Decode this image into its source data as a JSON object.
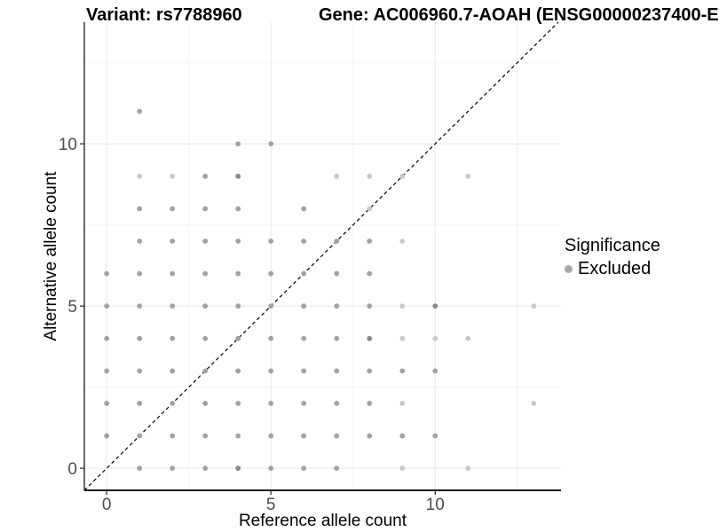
{
  "titles": {
    "variant": "Variant: rs7788960",
    "gene": "Gene: AC006960.7-AOAH (ENSG00000237400-E"
  },
  "axes": {
    "x_label": "Reference allele count",
    "y_label": "Alternative allele count"
  },
  "legend": {
    "title": "Significance",
    "items": [
      {
        "label": "Excluded",
        "color": "#a9a9a9"
      }
    ]
  },
  "chart_data": {
    "type": "scatter",
    "xlabel": "Reference allele count",
    "ylabel": "Alternative allele count",
    "xlim": [
      -0.68,
      13.83
    ],
    "ylim": [
      -0.68,
      13.75
    ],
    "x_ticks": [
      0,
      5,
      10
    ],
    "y_ticks": [
      0,
      5,
      10
    ],
    "x_minor_ticks": [
      2.5,
      7.5,
      12.5
    ],
    "y_minor_ticks": [
      2.5,
      7.5,
      12.5
    ],
    "grid": true,
    "legend_position": "right",
    "identity_line": {
      "slope": 1,
      "intercept": 0,
      "style": "dashed",
      "color": "#000000"
    },
    "point_radius": 2.9,
    "shade_colors": {
      "l": "#c9c9c9",
      "m": "#a2a2a2",
      "d": "#8a8a8a"
    },
    "series": [
      {
        "name": "Excluded",
        "points": [
          [
            1,
            0,
            "m"
          ],
          [
            2,
            0,
            "m"
          ],
          [
            3,
            0,
            "m"
          ],
          [
            4,
            0,
            "d"
          ],
          [
            5,
            0,
            "m"
          ],
          [
            6,
            0,
            "m"
          ],
          [
            7,
            0,
            "m"
          ],
          [
            9,
            0,
            "l"
          ],
          [
            11,
            0,
            "l"
          ],
          [
            0,
            1,
            "m"
          ],
          [
            1,
            1,
            "m"
          ],
          [
            2,
            1,
            "m"
          ],
          [
            3,
            1,
            "m"
          ],
          [
            4,
            1,
            "m"
          ],
          [
            5,
            1,
            "m"
          ],
          [
            6,
            1,
            "m"
          ],
          [
            7,
            1,
            "m"
          ],
          [
            8,
            1,
            "m"
          ],
          [
            9,
            1,
            "m"
          ],
          [
            10,
            1,
            "m"
          ],
          [
            0,
            2,
            "m"
          ],
          [
            1,
            2,
            "m"
          ],
          [
            2,
            2,
            "m"
          ],
          [
            3,
            2,
            "m"
          ],
          [
            4,
            2,
            "m"
          ],
          [
            5,
            2,
            "m"
          ],
          [
            6,
            2,
            "m"
          ],
          [
            7,
            2,
            "m"
          ],
          [
            8,
            2,
            "m"
          ],
          [
            9,
            2,
            "l"
          ],
          [
            13,
            2,
            "l"
          ],
          [
            0,
            3,
            "m"
          ],
          [
            1,
            3,
            "m"
          ],
          [
            2,
            3,
            "m"
          ],
          [
            3,
            3,
            "m"
          ],
          [
            4,
            3,
            "m"
          ],
          [
            5,
            3,
            "m"
          ],
          [
            6,
            3,
            "m"
          ],
          [
            7,
            3,
            "m"
          ],
          [
            8,
            3,
            "m"
          ],
          [
            9,
            3,
            "m"
          ],
          [
            10,
            3,
            "m"
          ],
          [
            0,
            4,
            "m"
          ],
          [
            1,
            4,
            "m"
          ],
          [
            2,
            4,
            "m"
          ],
          [
            3,
            4,
            "m"
          ],
          [
            4,
            4,
            "m"
          ],
          [
            5,
            4,
            "m"
          ],
          [
            6,
            4,
            "m"
          ],
          [
            7,
            4,
            "m"
          ],
          [
            8,
            4,
            "d"
          ],
          [
            9,
            4,
            "l"
          ],
          [
            10,
            4,
            "l"
          ],
          [
            11,
            4,
            "l"
          ],
          [
            0,
            5,
            "m"
          ],
          [
            1,
            5,
            "m"
          ],
          [
            2,
            5,
            "m"
          ],
          [
            3,
            5,
            "m"
          ],
          [
            4,
            5,
            "m"
          ],
          [
            5,
            5,
            "m"
          ],
          [
            6,
            5,
            "m"
          ],
          [
            7,
            5,
            "m"
          ],
          [
            8,
            5,
            "m"
          ],
          [
            9,
            5,
            "l"
          ],
          [
            10,
            5,
            "d"
          ],
          [
            13,
            5,
            "l"
          ],
          [
            0,
            6,
            "m"
          ],
          [
            1,
            6,
            "m"
          ],
          [
            2,
            6,
            "m"
          ],
          [
            3,
            6,
            "m"
          ],
          [
            4,
            6,
            "m"
          ],
          [
            5,
            6,
            "m"
          ],
          [
            6,
            6,
            "m"
          ],
          [
            7,
            6,
            "m"
          ],
          [
            8,
            6,
            "m"
          ],
          [
            1,
            7,
            "m"
          ],
          [
            2,
            7,
            "m"
          ],
          [
            3,
            7,
            "m"
          ],
          [
            4,
            7,
            "m"
          ],
          [
            5,
            7,
            "m"
          ],
          [
            6,
            7,
            "m"
          ],
          [
            7,
            7,
            "m"
          ],
          [
            8,
            7,
            "m"
          ],
          [
            9,
            7,
            "l"
          ],
          [
            1,
            8,
            "m"
          ],
          [
            2,
            8,
            "m"
          ],
          [
            3,
            8,
            "m"
          ],
          [
            4,
            8,
            "m"
          ],
          [
            6,
            8,
            "m"
          ],
          [
            8,
            8,
            "l"
          ],
          [
            1,
            9,
            "l"
          ],
          [
            2,
            9,
            "l"
          ],
          [
            3,
            9,
            "m"
          ],
          [
            4,
            9,
            "d"
          ],
          [
            7,
            9,
            "l"
          ],
          [
            8,
            9,
            "l"
          ],
          [
            9,
            9,
            "l"
          ],
          [
            11,
            9,
            "l"
          ],
          [
            4,
            10,
            "m"
          ],
          [
            5,
            10,
            "m"
          ],
          [
            1,
            11,
            "m"
          ]
        ]
      }
    ]
  },
  "style": {
    "grid_major_color": "#e7e7e7",
    "grid_minor_color": "#f3f3f3",
    "axis_line_color": "#1a1a1a",
    "tick_label_color": "#4d4d4d"
  }
}
